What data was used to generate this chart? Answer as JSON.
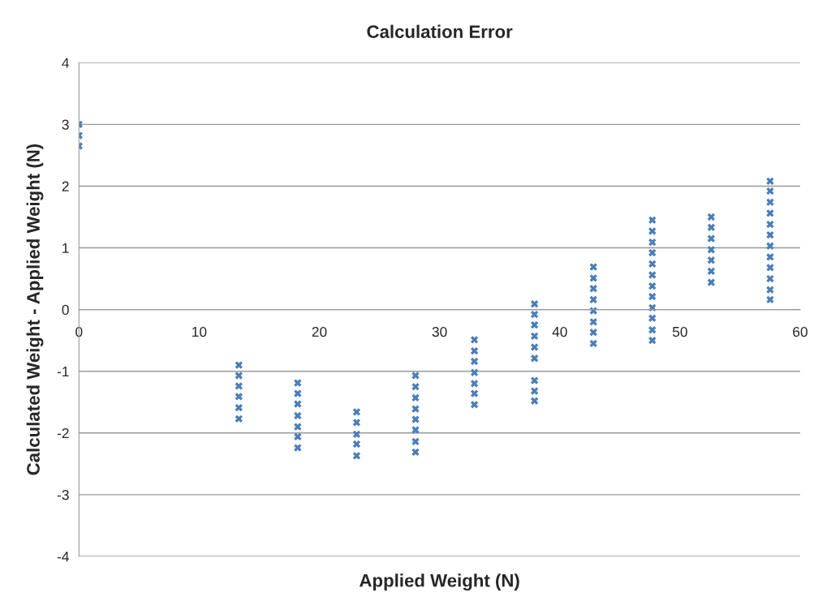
{
  "chart_data": {
    "type": "scatter",
    "title": "Calculation Error",
    "xlabel": "Applied Weight (N)",
    "ylabel": "Calculated Weight - Applied Weight (N)",
    "x": [
      0,
      0,
      0,
      13.3,
      13.3,
      13.3,
      13.3,
      13.3,
      13.3,
      18.2,
      18.2,
      18.2,
      18.2,
      18.2,
      18.2,
      18.2,
      23.1,
      23.1,
      23.1,
      23.1,
      23.1,
      28,
      28,
      28,
      28,
      28,
      28,
      28,
      28,
      32.9,
      32.9,
      32.9,
      32.9,
      32.9,
      32.9,
      32.9,
      37.9,
      37.9,
      37.9,
      37.9,
      37.9,
      37.9,
      37.9,
      37.9,
      37.9,
      42.8,
      42.8,
      42.8,
      42.8,
      42.8,
      42.8,
      42.8,
      42.8,
      47.7,
      47.7,
      47.7,
      47.7,
      47.7,
      47.7,
      47.7,
      47.7,
      47.7,
      47.7,
      47.7,
      47.7,
      52.6,
      52.6,
      52.6,
      52.6,
      52.6,
      52.6,
      52.6,
      57.5,
      57.5,
      57.5,
      57.5,
      57.5,
      57.5,
      57.5,
      57.5,
      57.5,
      57.5,
      57.5,
      57.5
    ],
    "values": [
      3.0,
      2.82,
      2.65,
      -0.9,
      -1.07,
      -1.24,
      -1.41,
      -1.59,
      -1.77,
      -1.19,
      -1.36,
      -1.53,
      -1.72,
      -1.9,
      -2.06,
      -2.24,
      -1.66,
      -1.83,
      -2.02,
      -2.18,
      -2.37,
      -1.07,
      -1.25,
      -1.43,
      -1.61,
      -1.78,
      -1.95,
      -2.14,
      -2.31,
      -0.49,
      -0.67,
      -0.84,
      -1.02,
      -1.2,
      -1.36,
      -1.54,
      0.09,
      -0.08,
      -0.25,
      -0.43,
      -0.61,
      -0.79,
      -1.15,
      -1.32,
      -1.48,
      0.69,
      0.51,
      0.34,
      0.16,
      -0.02,
      -0.2,
      -0.37,
      -0.55,
      1.45,
      1.27,
      1.09,
      0.92,
      0.74,
      0.56,
      0.38,
      0.21,
      0.03,
      -0.14,
      -0.33,
      -0.5,
      1.5,
      1.33,
      1.15,
      0.97,
      0.8,
      0.62,
      0.44,
      2.08,
      1.92,
      1.74,
      1.56,
      1.38,
      1.21,
      1.03,
      0.85,
      0.68,
      0.5,
      0.32,
      0.16
    ],
    "color": "#4a7ebb",
    "marker": "cross",
    "grid": "y",
    "xlim": [
      0,
      60
    ],
    "xticks": [
      0,
      10,
      20,
      30,
      40,
      50,
      60
    ],
    "ylim": [
      -4,
      4
    ],
    "yticks": [
      -4,
      -3,
      -2,
      -1,
      0,
      1,
      2,
      3,
      4
    ]
  }
}
